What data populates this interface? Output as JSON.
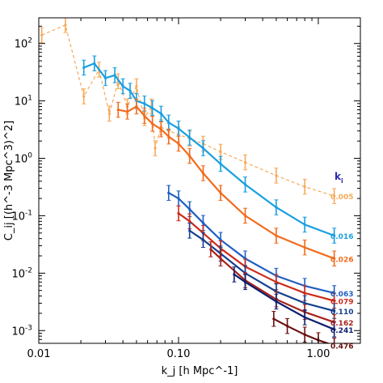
{
  "chart_data": {
    "type": "line",
    "title": "",
    "xlabel": "k_j [h Mpc^-1]",
    "ylabel": "C_ij [(h^-3 Mpc^3)^2]",
    "xscale": "log",
    "yscale": "log",
    "xlim": [
      0.01,
      2.0
    ],
    "ylim": [
      0.0006,
      280
    ],
    "x_ticks": [
      {
        "value": 0.01,
        "label": "0.01"
      },
      {
        "value": 0.1,
        "label": "0.10"
      },
      {
        "value": 1.0,
        "label": "1.00"
      }
    ],
    "y_ticks": [
      {
        "value": 0.001,
        "base": "10",
        "exp": "-3"
      },
      {
        "value": 0.01,
        "base": "10",
        "exp": "-2"
      },
      {
        "value": 0.1,
        "base": "10",
        "exp": "-1"
      },
      {
        "value": 1,
        "base": "10",
        "exp": "0"
      },
      {
        "value": 10,
        "base": "10",
        "exp": "1"
      },
      {
        "value": 100,
        "base": "10",
        "exp": "2"
      }
    ],
    "legend_title": "k_i",
    "legend_position": "right",
    "series": [
      {
        "name": "0.005",
        "color": "#f6a95a",
        "dashed": true,
        "x": [
          0.0105,
          0.0155,
          0.021,
          0.027,
          0.032,
          0.037,
          0.043,
          0.05,
          0.057,
          0.064,
          0.068,
          0.075,
          0.085,
          0.1,
          0.12,
          0.15,
          0.2,
          0.3,
          0.5,
          0.8,
          1.3
        ],
        "y": [
          140,
          210,
          12,
          35,
          6,
          22,
          8,
          18,
          5,
          8,
          1.5,
          3.5,
          3.0,
          2.6,
          2.2,
          1.8,
          1.3,
          0.85,
          0.5,
          0.32,
          0.22
        ]
      },
      {
        "name": "0.016",
        "color": "#1a9fe0",
        "dashed": false,
        "x": [
          0.021,
          0.025,
          0.03,
          0.035,
          0.04,
          0.045,
          0.05,
          0.057,
          0.065,
          0.075,
          0.085,
          0.1,
          0.12,
          0.15,
          0.2,
          0.3,
          0.5,
          0.8,
          1.3
        ],
        "y": [
          38,
          45,
          25,
          28,
          18,
          15,
          10,
          9,
          7.5,
          6,
          4.2,
          3.3,
          2.3,
          1.5,
          0.8,
          0.35,
          0.14,
          0.07,
          0.045
        ]
      },
      {
        "name": "0.026",
        "color": "#f26b1d",
        "dashed": false,
        "x": [
          0.037,
          0.043,
          0.05,
          0.057,
          0.065,
          0.075,
          0.085,
          0.1,
          0.12,
          0.15,
          0.2,
          0.3,
          0.5,
          0.8,
          1.3
        ],
        "y": [
          7,
          6.5,
          8,
          5.5,
          4,
          3.2,
          2.4,
          1.8,
          1.1,
          0.55,
          0.25,
          0.1,
          0.045,
          0.028,
          0.018
        ]
      },
      {
        "name": "0.063",
        "color": "#1f5fc2",
        "dashed": false,
        "x": [
          0.085,
          0.1,
          0.12,
          0.15,
          0.2,
          0.3,
          0.5,
          0.8,
          1.3
        ],
        "y": [
          0.25,
          0.2,
          0.13,
          0.075,
          0.038,
          0.018,
          0.009,
          0.006,
          0.0045
        ]
      },
      {
        "name": "0.079",
        "color": "#cc2b1a",
        "dashed": false,
        "x": [
          0.1,
          0.12,
          0.15,
          0.2,
          0.3,
          0.5,
          0.8,
          1.3
        ],
        "y": [
          0.11,
          0.08,
          0.05,
          0.027,
          0.013,
          0.007,
          0.0045,
          0.0033
        ]
      },
      {
        "name": "0.110",
        "color": "#15408f",
        "dashed": false,
        "x": [
          0.12,
          0.15,
          0.2,
          0.3,
          0.5,
          0.8,
          1.3
        ],
        "y": [
          0.055,
          0.038,
          0.022,
          0.01,
          0.0048,
          0.003,
          0.0022
        ]
      },
      {
        "name": "0.162",
        "color": "#a6231b",
        "dashed": false,
        "x": [
          0.17,
          0.2,
          0.3,
          0.5,
          0.8,
          1.3
        ],
        "y": [
          0.026,
          0.018,
          0.0075,
          0.0035,
          0.0021,
          0.0014
        ]
      },
      {
        "name": "0.241",
        "color": "#0e1f70",
        "dashed": false,
        "x": [
          0.25,
          0.3,
          0.5,
          0.8,
          1.3
        ],
        "y": [
          0.0095,
          0.007,
          0.0032,
          0.0017,
          0.00105
        ]
      },
      {
        "name": "0.476",
        "color": "#6b1010",
        "dashed": false,
        "x": [
          0.48,
          0.6,
          0.8,
          1.0,
          1.3
        ],
        "y": [
          0.0016,
          0.0012,
          0.00085,
          0.00068,
          0.00055
        ]
      }
    ]
  }
}
